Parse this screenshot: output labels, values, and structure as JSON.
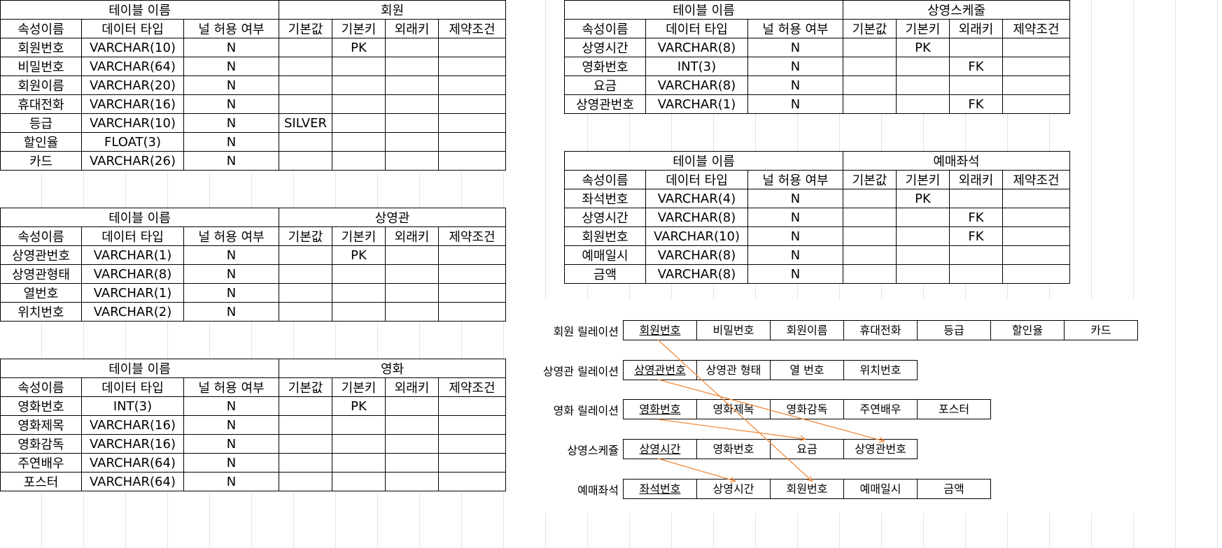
{
  "column_headers": {
    "table_name": "테이블 이름",
    "attr_name": "속성이름",
    "data_type": "데이터 타입",
    "nullable": "널 허용 여부",
    "default": "기본값",
    "primary_key": "기본키",
    "foreign_key": "외래키",
    "constraint": "제약조건"
  },
  "tables": {
    "member": {
      "name": "회원",
      "rows": [
        [
          "회원번호",
          "VARCHAR(10)",
          "N",
          "",
          "PK",
          "",
          ""
        ],
        [
          "비밀번호",
          "VARCHAR(64)",
          "N",
          "",
          "",
          "",
          ""
        ],
        [
          "회원이름",
          "VARCHAR(20)",
          "N",
          "",
          "",
          "",
          ""
        ],
        [
          "휴대전화",
          "VARCHAR(16)",
          "N",
          "",
          "",
          "",
          ""
        ],
        [
          "등급",
          "VARCHAR(10)",
          "N",
          "SILVER",
          "",
          "",
          ""
        ],
        [
          "할인율",
          "FLOAT(3)",
          "N",
          "",
          "",
          "",
          ""
        ],
        [
          "카드",
          "VARCHAR(26)",
          "N",
          "",
          "",
          "",
          ""
        ]
      ]
    },
    "screen": {
      "name": "상영관",
      "rows": [
        [
          "상영관번호",
          "VARCHAR(1)",
          "N",
          "",
          "PK",
          "",
          ""
        ],
        [
          "상영관형태",
          "VARCHAR(8)",
          "N",
          "",
          "",
          "",
          ""
        ],
        [
          "열번호",
          "VARCHAR(1)",
          "N",
          "",
          "",
          "",
          ""
        ],
        [
          "위치번호",
          "VARCHAR(2)",
          "N",
          "",
          "",
          "",
          ""
        ]
      ]
    },
    "movie": {
      "name": "영화",
      "rows": [
        [
          "영화번호",
          "INT(3)",
          "N",
          "",
          "PK",
          "",
          ""
        ],
        [
          "영화제목",
          "VARCHAR(16)",
          "N",
          "",
          "",
          "",
          ""
        ],
        [
          "영화감독",
          "VARCHAR(16)",
          "N",
          "",
          "",
          "",
          ""
        ],
        [
          "주연배우",
          "VARCHAR(64)",
          "N",
          "",
          "",
          "",
          ""
        ],
        [
          "포스터",
          "VARCHAR(64)",
          "N",
          "",
          "",
          "",
          ""
        ]
      ]
    },
    "schedule": {
      "name": "상영스케줄",
      "rows": [
        [
          "상영시간",
          "VARCHAR(8)",
          "N",
          "",
          "PK",
          "",
          ""
        ],
        [
          "영화번호",
          "INT(3)",
          "N",
          "",
          "",
          "FK",
          ""
        ],
        [
          "요금",
          "VARCHAR(8)",
          "N",
          "",
          "",
          "",
          ""
        ],
        [
          "상영관번호",
          "VARCHAR(1)",
          "N",
          "",
          "",
          "FK",
          ""
        ]
      ]
    },
    "reserve": {
      "name": "예매좌석",
      "rows": [
        [
          "좌석번호",
          "VARCHAR(4)",
          "N",
          "",
          "PK",
          "",
          ""
        ],
        [
          "상영시간",
          "VARCHAR(8)",
          "N",
          "",
          "",
          "FK",
          ""
        ],
        [
          "회원번호",
          "VARCHAR(10)",
          "N",
          "",
          "",
          "FK",
          ""
        ],
        [
          "예매일시",
          "VARCHAR(8)",
          "N",
          "",
          "",
          "",
          ""
        ],
        [
          "금액",
          "VARCHAR(8)",
          "N",
          "",
          "",
          "",
          ""
        ]
      ]
    }
  },
  "relations": [
    {
      "label": "회원 릴레이션",
      "key": "member",
      "fields": [
        "회원번호",
        "비밀번호",
        "회원이름",
        "휴대전화",
        "등급",
        "할인율",
        "카드"
      ]
    },
    {
      "label": "상영관 릴레이션",
      "key": "screen",
      "fields": [
        "상영관번호",
        "상영관 형태",
        "열 번호",
        "위치번호"
      ]
    },
    {
      "label": "영화 릴레이션",
      "key": "movie",
      "fields": [
        "영화번호",
        "영화제목",
        "영화감독",
        "주연배우",
        "포스터"
      ]
    },
    {
      "label": "상영스케쥴",
      "key": "schedule",
      "fields": [
        "상영시간",
        "영화번호",
        "요금",
        "상영관번호"
      ]
    },
    {
      "label": "예매좌석",
      "key": "reserve",
      "fields": [
        "좌석번호",
        "상영시간",
        "회원번호",
        "예매일시",
        "금액"
      ]
    }
  ],
  "colors": {
    "arrow": "#f08a3c",
    "grid": "#e4e4e4",
    "border": "#000000"
  }
}
